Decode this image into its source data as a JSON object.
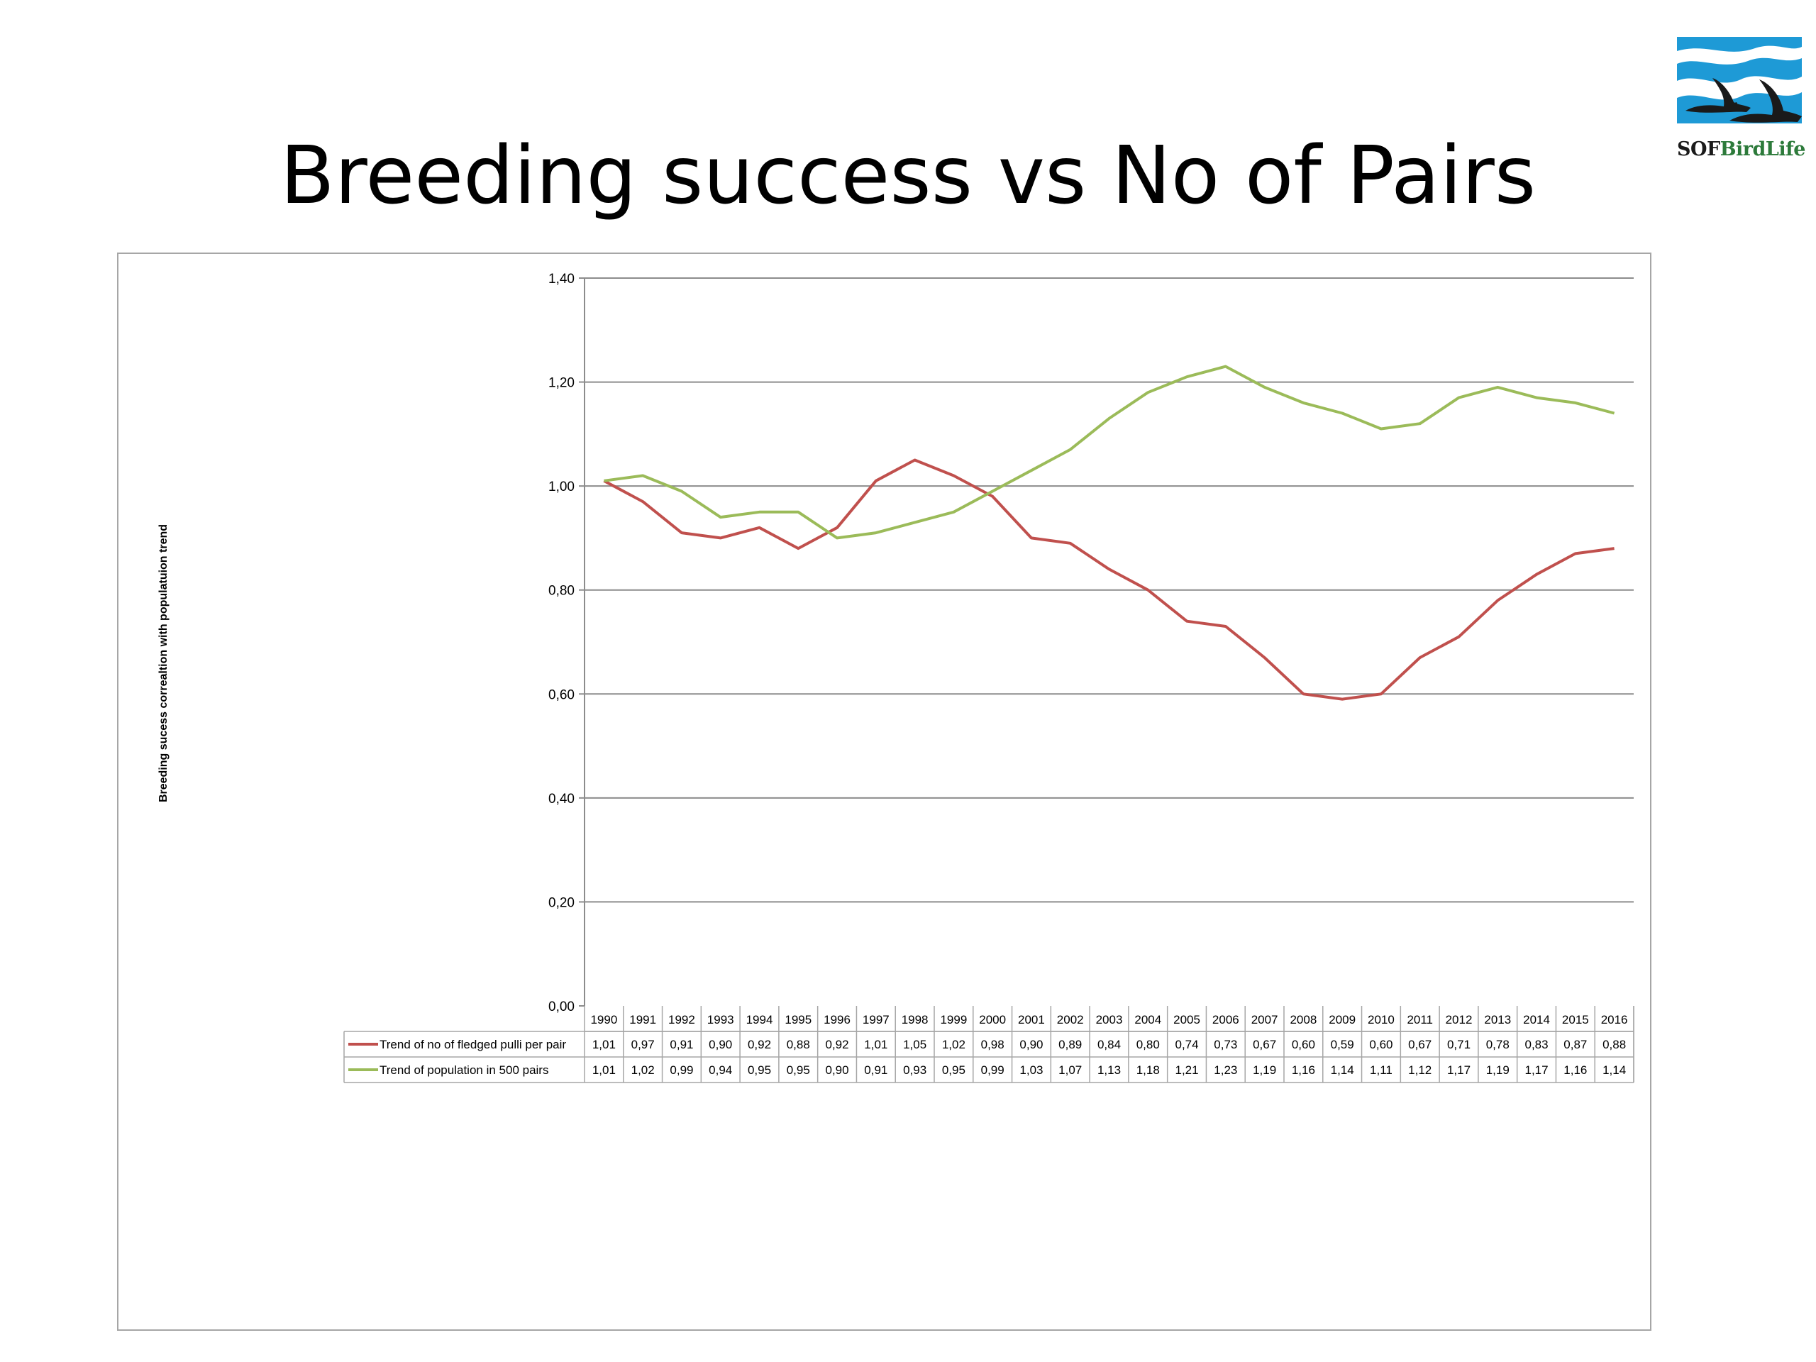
{
  "slide": {
    "title": "Breeding success vs No of Pairs",
    "logo": {
      "text_part1": "SOF",
      "text_part2": "BirdLife",
      "icon": "two-flying-geese-logo",
      "colors": {
        "sky": "#1e9ad6",
        "birds": "#1a1a1a",
        "text_green": "#2c7a3a"
      }
    }
  },
  "chart_data": {
    "type": "line",
    "title": "",
    "xlabel": "",
    "ylabel": "Breeding sucess correaltion with populatuion trend",
    "ylim": [
      0,
      1.4
    ],
    "yticks": [
      "0,00",
      "0,20",
      "0,40",
      "0,60",
      "0,80",
      "1,00",
      "1,20",
      "1,40"
    ],
    "grid": true,
    "legend": "data-table-below",
    "categories": [
      "1990",
      "1991",
      "1992",
      "1993",
      "1994",
      "1995",
      "1996",
      "1997",
      "1998",
      "1999",
      "2000",
      "2001",
      "2002",
      "2003",
      "2004",
      "2005",
      "2006",
      "2007",
      "2008",
      "2009",
      "2010",
      "2011",
      "2012",
      "2013",
      "2014",
      "2015",
      "2016"
    ],
    "series": [
      {
        "name": "Trend of no of fledged pulli per pair",
        "color": "#c0504d",
        "values": [
          1.01,
          0.97,
          0.91,
          0.9,
          0.92,
          0.88,
          0.92,
          1.01,
          1.05,
          1.02,
          0.98,
          0.9,
          0.89,
          0.84,
          0.8,
          0.74,
          0.73,
          0.67,
          0.6,
          0.59,
          0.6,
          0.67,
          0.71,
          0.78,
          0.83,
          0.87,
          0.88
        ],
        "labels": [
          "1,01",
          "0,97",
          "0,91",
          "0,90",
          "0,92",
          "0,88",
          "0,92",
          "1,01",
          "1,05",
          "1,02",
          "0,98",
          "0,90",
          "0,89",
          "0,84",
          "0,80",
          "0,74",
          "0,73",
          "0,67",
          "0,60",
          "0,59",
          "0,60",
          "0,67",
          "0,71",
          "0,78",
          "0,83",
          "0,87",
          "0,88"
        ]
      },
      {
        "name": "Trend of population in 500 pairs",
        "color": "#9bbb59",
        "values": [
          1.01,
          1.02,
          0.99,
          0.94,
          0.95,
          0.95,
          0.9,
          0.91,
          0.93,
          0.95,
          0.99,
          1.03,
          1.07,
          1.13,
          1.18,
          1.21,
          1.23,
          1.19,
          1.16,
          1.14,
          1.11,
          1.12,
          1.17,
          1.19,
          1.17,
          1.16,
          1.14
        ],
        "labels": [
          "1,01",
          "1,02",
          "0,99",
          "0,94",
          "0,95",
          "0,95",
          "0,90",
          "0,91",
          "0,93",
          "0,95",
          "0,99",
          "1,03",
          "1,07",
          "1,13",
          "1,18",
          "1,21",
          "1,23",
          "1,19",
          "1,16",
          "1,14",
          "1,11",
          "1,12",
          "1,17",
          "1,19",
          "1,17",
          "1,16",
          "1,14"
        ]
      }
    ]
  }
}
